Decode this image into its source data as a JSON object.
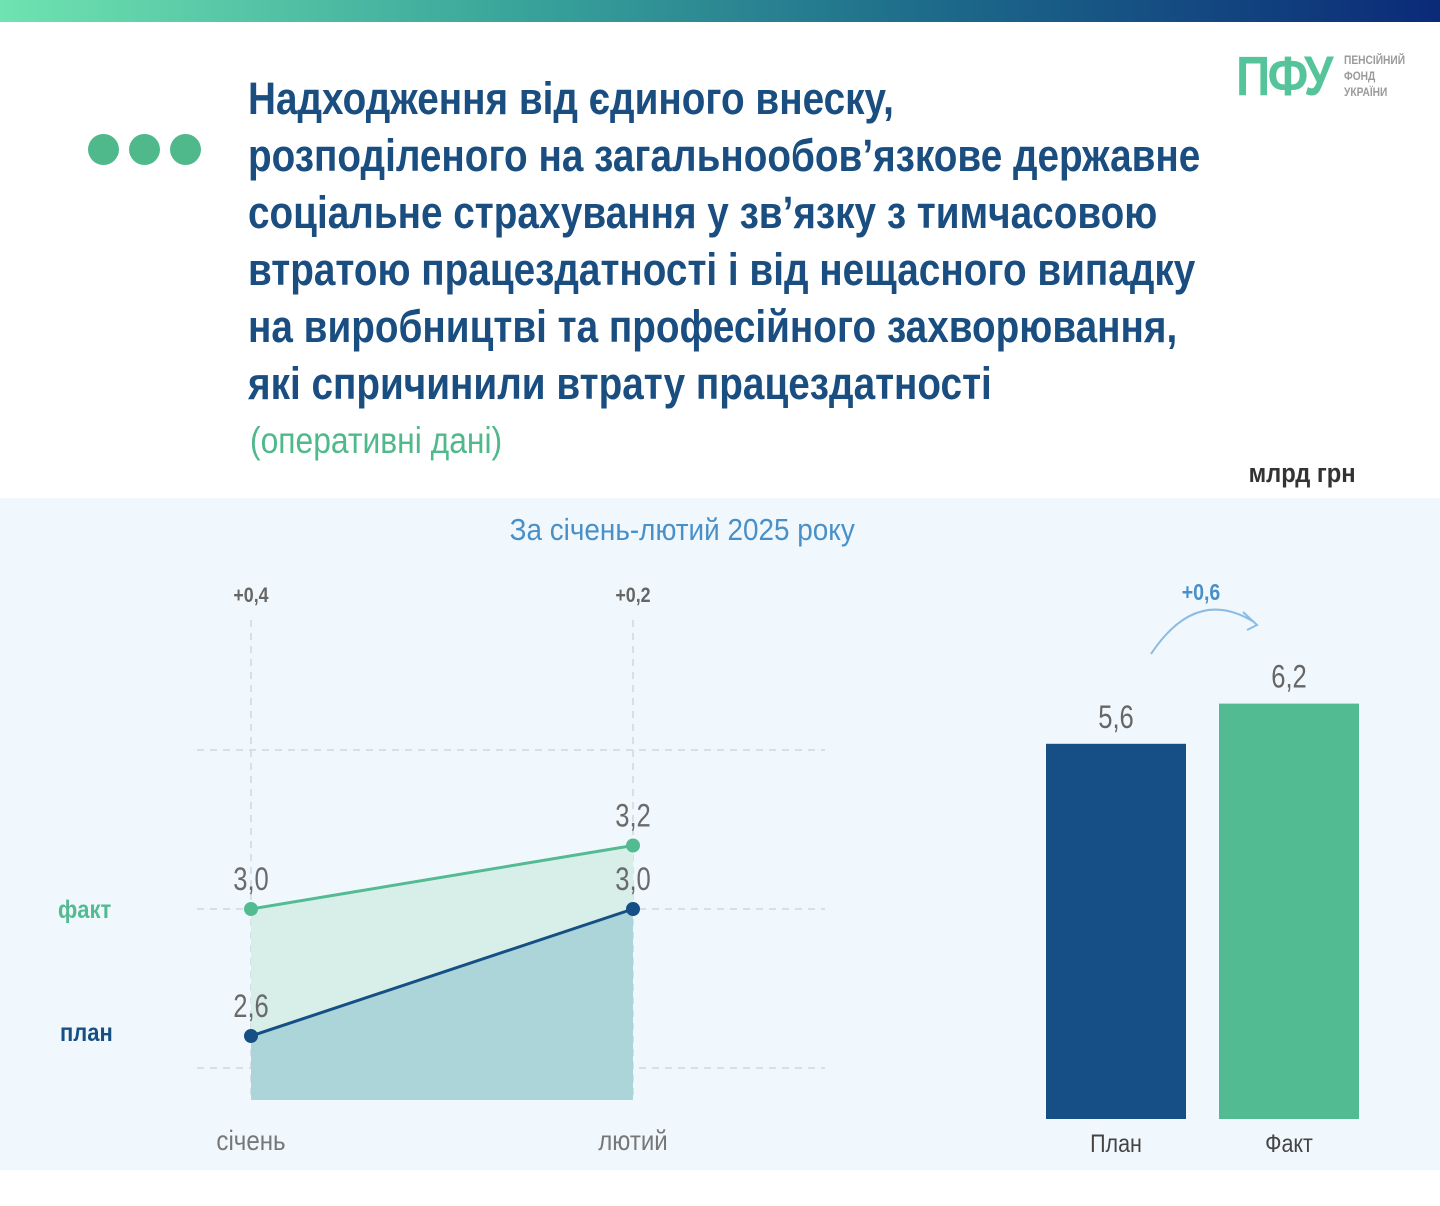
{
  "header": {
    "title_lines": [
      "Надходження від єдиного внеску,",
      "розподіленого на загальнообов’язкове державне",
      "соціальне страхування у зв’язку з тимчасовою",
      "втратою працездатності і від нещасного випадку",
      "на виробництві та професійного захворювання,",
      "які спричинили втрату працездатності"
    ],
    "subtitle": "(оперативні дані)",
    "unit": "млрд грн"
  },
  "logo": {
    "mark": "ПФУ",
    "lines": [
      "ПЕНСІЙНИЙ",
      "ФОНД",
      "УКРАЇНИ"
    ]
  },
  "period": "За січень-лютий 2025 року",
  "colors": {
    "plan": "#154f85",
    "fact": "#52bb92",
    "title": "#1a4d80",
    "accent_text": "#4a90c8",
    "panel_bg": "#f1f8fd"
  },
  "chart_data": [
    {
      "type": "line",
      "categories": [
        "січень",
        "лютий"
      ],
      "series": [
        {
          "name": "факт",
          "values": [
            3.0,
            3.2
          ],
          "labels": [
            "3,0",
            "3,2"
          ]
        },
        {
          "name": "план",
          "values": [
            2.6,
            3.0
          ],
          "labels": [
            "2,6",
            "3,0"
          ]
        }
      ],
      "differences": [
        "+0,4",
        "+0,2"
      ],
      "ylim": [
        2.0,
        3.6
      ],
      "grid": true,
      "fill": "area"
    },
    {
      "type": "bar",
      "categories": [
        "План",
        "Факт"
      ],
      "values": [
        5.6,
        6.2
      ],
      "labels": [
        "5,6",
        "6,2"
      ],
      "difference": "+0,6",
      "ylim": [
        0,
        6.6
      ]
    }
  ]
}
